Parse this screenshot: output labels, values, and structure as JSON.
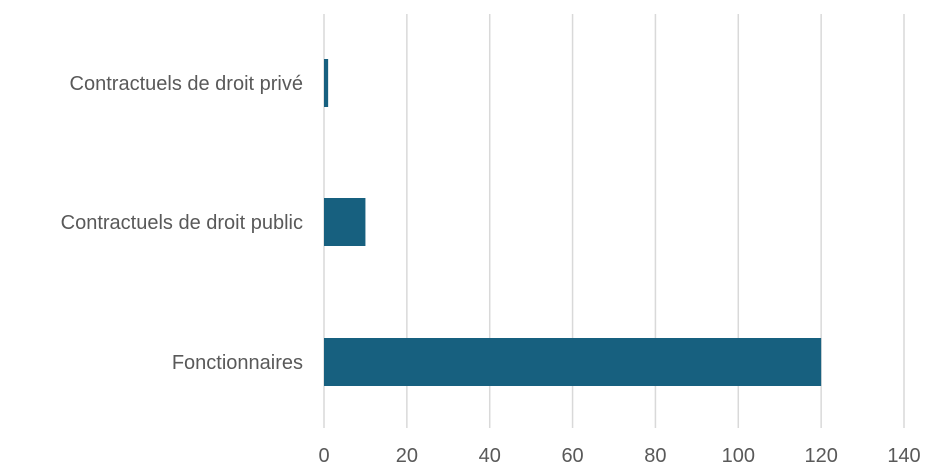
{
  "chart_data": {
    "type": "bar",
    "orientation": "horizontal",
    "categories": [
      "Contractuels de droit privé",
      "Contractuels de droit public",
      "Fonctionnaires"
    ],
    "values": [
      1,
      10,
      120
    ],
    "x_ticks": [
      0,
      20,
      40,
      60,
      80,
      100,
      120,
      140
    ],
    "xlim": [
      0,
      140
    ],
    "title": "",
    "xlabel": "",
    "ylabel": "",
    "grid": "vertical",
    "legend": "none",
    "bar_color": "#17607f"
  }
}
